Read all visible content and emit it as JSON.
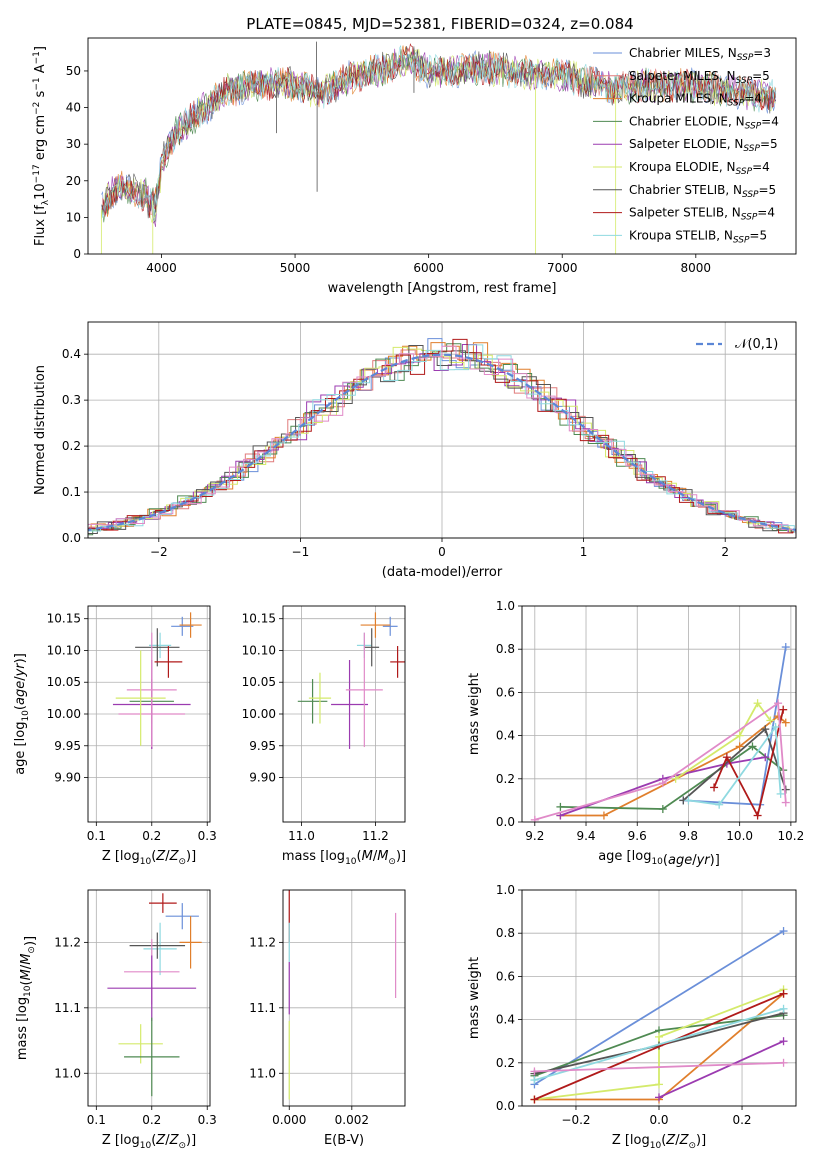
{
  "figure": {
    "title": "PLATE=0845, MJD=52381, FIBERID=0324, z=0.084"
  },
  "colors": {
    "Chabrier MILES": "#6a8fd9",
    "Salpeter MILES": "#e07b7b",
    "Kroupa MILES": "#e07f2c",
    "Chabrier ELODIE": "#4f8a52",
    "Salpeter ELODIE": "#9b3bb0",
    "Kroupa ELODIE": "#d4ea6b",
    "Chabrier STELIB": "#555555",
    "Salpeter STELIB": "#b01a1a",
    "Kroupa STELIB": "#8fd9e0",
    "Salpeter ELODIE pink": "#e08ac8",
    "gaussian": "#5b86d6"
  },
  "chart_data": [
    {
      "id": "spectrum",
      "type": "line",
      "xlabel": "wavelength [Angstrom, rest frame]",
      "ylabel": "Flux [f_λ 10^-17 erg cm^-2 s^-1 A^-1]",
      "ylabel_parts": {
        "a": "Flux [f",
        "b": "λ",
        "c": "10",
        "d": "−17",
        "e": " erg cm",
        "f": "−2",
        "g": " s",
        "h": "−1",
        "i": " A",
        "j": "−1",
        "k": "]"
      },
      "xlim": [
        3450,
        8750
      ],
      "ylim": [
        0,
        59
      ],
      "xticks": [
        4000,
        5000,
        6000,
        7000,
        8000
      ],
      "yticks": [
        0,
        10,
        20,
        30,
        40,
        50
      ],
      "grid": false,
      "legend_position": "top-right",
      "legend": [
        {
          "label": "Chabrier MILES, N",
          "sub": "SSP",
          "tail": "=3",
          "color": "#6a8fd9"
        },
        {
          "label": "Salpeter MILES, N",
          "sub": "SSP",
          "tail": "=5",
          "color": "#e07b7b"
        },
        {
          "label": "Kroupa MILES, N",
          "sub": "SSP",
          "tail": "=4",
          "color": "#e07f2c"
        },
        {
          "label": "Chabrier ELODIE, N",
          "sub": "SSP",
          "tail": "=4",
          "color": "#4f8a52"
        },
        {
          "label": "Salpeter ELODIE, N",
          "sub": "SSP",
          "tail": "=5",
          "color": "#9b3bb0"
        },
        {
          "label": "Kroupa ELODIE, N",
          "sub": "SSP",
          "tail": "=4",
          "color": "#d4ea6b"
        },
        {
          "label": "Chabrier STELIB, N",
          "sub": "SSP",
          "tail": "=5",
          "color": "#555555"
        },
        {
          "label": "Salpeter STELIB, N",
          "sub": "SSP",
          "tail": "=4",
          "color": "#b01a1a"
        },
        {
          "label": "Kroupa STELIB, N",
          "sub": "SSP",
          "tail": "=5",
          "color": "#8fd9e0"
        }
      ],
      "continuum": [
        [
          3550,
          12
        ],
        [
          3600,
          15
        ],
        [
          3700,
          19
        ],
        [
          3800,
          17
        ],
        [
          3900,
          16
        ],
        [
          3950,
          14
        ],
        [
          4000,
          25
        ],
        [
          4100,
          33
        ],
        [
          4300,
          39
        ],
        [
          4500,
          45
        ],
        [
          4700,
          46
        ],
        [
          4900,
          47
        ],
        [
          5100,
          45
        ],
        [
          5200,
          44
        ],
        [
          5400,
          48
        ],
        [
          5700,
          51
        ],
        [
          5850,
          53
        ],
        [
          6000,
          50
        ],
        [
          6200,
          50
        ],
        [
          6400,
          51
        ],
        [
          6600,
          50
        ],
        [
          6800,
          49
        ],
        [
          7000,
          49
        ],
        [
          7200,
          47
        ],
        [
          7400,
          45
        ],
        [
          7600,
          46
        ],
        [
          8000,
          46
        ],
        [
          8400,
          44
        ],
        [
          8600,
          43
        ]
      ],
      "spikes": [
        [
          5160,
          58
        ],
        [
          5165,
          17
        ],
        [
          4861,
          33
        ],
        [
          5890,
          44
        ],
        [
          6560,
          55
        ],
        [
          6800,
          0
        ],
        [
          7400,
          0
        ],
        [
          3550,
          0
        ],
        [
          3935,
          0
        ]
      ]
    },
    {
      "id": "residuals",
      "type": "histogram",
      "xlabel": "(data-model)/error",
      "ylabel": "Normed distribution",
      "xlim": [
        -2.5,
        2.5
      ],
      "ylim": [
        0,
        0.47
      ],
      "xticks": [
        -2,
        -1,
        0,
        1,
        2
      ],
      "yticks": [
        0.0,
        0.1,
        0.2,
        0.3,
        0.4
      ],
      "grid": true,
      "legend_position": "top-right",
      "gaussian_label": "𝒩(0,1)",
      "bin_width": 0.1
    },
    {
      "id": "z-age",
      "type": "scatter",
      "xlabel": "Z [log10(Z/Z⊙)]",
      "ylabel": "age [log10(age/yr)]",
      "xlim": [
        0.085,
        0.305
      ],
      "ylim": [
        9.83,
        10.17
      ],
      "xticks": [
        0.1,
        0.2,
        0.3
      ],
      "yticks": [
        9.9,
        9.95,
        10.0,
        10.05,
        10.1,
        10.15
      ],
      "grid": true,
      "errorbars": [
        {
          "x": 0.255,
          "y": 10.138,
          "xerr": 0.02,
          "yerr": 0.015,
          "color": "#6a8fd9"
        },
        {
          "x": 0.27,
          "y": 10.14,
          "xerr": 0.02,
          "yerr": 0.02,
          "color": "#e07f2c"
        },
        {
          "x": 0.215,
          "y": 10.108,
          "xerr": 0.02,
          "yerr": 0.02,
          "color": "#8fd9e0"
        },
        {
          "x": 0.21,
          "y": 10.105,
          "xerr": 0.04,
          "yerr": 0.03,
          "color": "#555555"
        },
        {
          "x": 0.23,
          "y": 10.082,
          "xerr": 0.025,
          "yerr": 0.025,
          "color": "#b01a1a"
        },
        {
          "x": 0.2,
          "y": 10.02,
          "xerr": 0.04,
          "yerr": 0.035,
          "color": "#4f8a52"
        },
        {
          "x": 0.2,
          "y": 10.0,
          "xerr": 0.06,
          "yerr": 0.055,
          "color": "#e08ac8"
        },
        {
          "x": 0.2,
          "y": 10.015,
          "xerr": 0.07,
          "yerr": 0.07,
          "color": "#9b3bb0"
        },
        {
          "x": 0.2,
          "y": 10.038,
          "xerr": 0.045,
          "yerr": 0.09,
          "color": "#e08ac8"
        },
        {
          "x": 0.18,
          "y": 10.025,
          "xerr": 0.045,
          "yerr": 0.075,
          "color": "#d4ea6b"
        }
      ]
    },
    {
      "id": "mass-age",
      "type": "scatter",
      "xlabel": "mass [log10(M/M⊙)]",
      "ylabel": "",
      "xlim": [
        10.95,
        11.28
      ],
      "ylim": [
        9.83,
        10.17
      ],
      "xticks": [
        11.0,
        11.2
      ],
      "yticks": [
        9.9,
        9.95,
        10.0,
        10.05,
        10.1,
        10.15
      ],
      "grid": true,
      "errorbars": [
        {
          "x": 11.24,
          "y": 10.138,
          "xerr": 0.02,
          "yerr": 0.015,
          "color": "#6a8fd9"
        },
        {
          "x": 11.2,
          "y": 10.14,
          "xerr": 0.04,
          "yerr": 0.02,
          "color": "#e07f2c"
        },
        {
          "x": 11.17,
          "y": 10.108,
          "xerr": 0.02,
          "yerr": 0.02,
          "color": "#8fd9e0"
        },
        {
          "x": 11.19,
          "y": 10.105,
          "xerr": 0.02,
          "yerr": 0.03,
          "color": "#555555"
        },
        {
          "x": 11.26,
          "y": 10.082,
          "xerr": 0.02,
          "yerr": 0.025,
          "color": "#b01a1a"
        },
        {
          "x": 11.03,
          "y": 10.02,
          "xerr": 0.04,
          "yerr": 0.035,
          "color": "#4f8a52"
        },
        {
          "x": 11.13,
          "y": 10.015,
          "xerr": 0.05,
          "yerr": 0.07,
          "color": "#9b3bb0"
        },
        {
          "x": 11.17,
          "y": 10.038,
          "xerr": 0.05,
          "yerr": 0.09,
          "color": "#e08ac8"
        },
        {
          "x": 11.05,
          "y": 10.025,
          "xerr": 0.03,
          "yerr": 0.04,
          "color": "#d4ea6b"
        }
      ]
    },
    {
      "id": "age-weight",
      "type": "line",
      "xlabel": "age [log10(age/yr)]",
      "ylabel": "mass weight",
      "xlim": [
        9.15,
        10.22
      ],
      "ylim": [
        0,
        1
      ],
      "xticks": [
        9.2,
        9.4,
        9.6,
        9.8,
        10.0,
        10.2
      ],
      "yticks": [
        0.0,
        0.2,
        0.4,
        0.6,
        0.8,
        1.0
      ],
      "grid": true,
      "series": [
        {
          "color": "#6a8fd9",
          "points": [
            [
              9.78,
              0.1
            ],
            [
              10.08,
              0.08
            ],
            [
              10.18,
              0.81
            ]
          ]
        },
        {
          "color": "#e07f2c",
          "points": [
            [
              9.3,
              0.03
            ],
            [
              9.47,
              0.03
            ],
            [
              10.0,
              0.35
            ],
            [
              10.15,
              0.49
            ],
            [
              10.18,
              0.46
            ]
          ]
        },
        {
          "color": "#4f8a52",
          "points": [
            [
              9.3,
              0.07
            ],
            [
              9.7,
              0.06
            ],
            [
              10.05,
              0.35
            ],
            [
              10.17,
              0.24
            ]
          ]
        },
        {
          "color": "#9b3bb0",
          "points": [
            [
              9.3,
              0.03
            ],
            [
              9.7,
              0.2
            ],
            [
              9.95,
              0.27
            ],
            [
              10.1,
              0.3
            ]
          ]
        },
        {
          "color": "#d4ea6b",
          "points": [
            [
              9.75,
              0.2
            ],
            [
              10.0,
              0.4
            ],
            [
              10.07,
              0.55
            ],
            [
              10.12,
              0.47
            ]
          ]
        },
        {
          "color": "#555555",
          "points": [
            [
              9.78,
              0.1
            ],
            [
              10.1,
              0.43
            ],
            [
              10.18,
              0.15
            ]
          ]
        },
        {
          "color": "#b01a1a",
          "points": [
            [
              9.9,
              0.16
            ],
            [
              9.95,
              0.3
            ],
            [
              10.07,
              0.03
            ],
            [
              10.17,
              0.52
            ]
          ]
        },
        {
          "color": "#8fd9e0",
          "points": [
            [
              9.8,
              0.1
            ],
            [
              9.92,
              0.08
            ],
            [
              10.14,
              0.44
            ],
            [
              10.16,
              0.13
            ]
          ]
        },
        {
          "color": "#e08ac8",
          "points": [
            [
              9.2,
              0.01
            ],
            [
              9.7,
              0.18
            ],
            [
              10.15,
              0.55
            ],
            [
              10.18,
              0.09
            ]
          ]
        }
      ]
    },
    {
      "id": "z-mass",
      "type": "scatter",
      "xlabel": "Z [log10(Z/Z⊙)]",
      "ylabel": "mass [log10(M/M⊙)]",
      "xlim": [
        0.085,
        0.305
      ],
      "ylim": [
        10.95,
        11.28
      ],
      "xticks": [
        0.1,
        0.2,
        0.3
      ],
      "yticks": [
        11.0,
        11.1,
        11.2
      ],
      "grid": true,
      "errorbars": [
        {
          "x": 0.255,
          "y": 11.24,
          "xerr": 0.03,
          "yerr": 0.02,
          "color": "#6a8fd9"
        },
        {
          "x": 0.22,
          "y": 11.26,
          "xerr": 0.025,
          "yerr": 0.015,
          "color": "#b01a1a"
        },
        {
          "x": 0.27,
          "y": 11.2,
          "xerr": 0.02,
          "yerr": 0.04,
          "color": "#e07f2c"
        },
        {
          "x": 0.215,
          "y": 11.19,
          "xerr": 0.03,
          "yerr": 0.04,
          "color": "#8fd9e0"
        },
        {
          "x": 0.21,
          "y": 11.195,
          "xerr": 0.05,
          "yerr": 0.02,
          "color": "#555555"
        },
        {
          "x": 0.2,
          "y": 11.155,
          "xerr": 0.05,
          "yerr": 0.05,
          "color": "#e08ac8"
        },
        {
          "x": 0.2,
          "y": 11.13,
          "xerr": 0.08,
          "yerr": 0.05,
          "color": "#9b3bb0"
        },
        {
          "x": 0.18,
          "y": 11.045,
          "xerr": 0.04,
          "yerr": 0.03,
          "color": "#d4ea6b"
        },
        {
          "x": 0.2,
          "y": 11.025,
          "xerr": 0.05,
          "yerr": 0.06,
          "color": "#4f8a52"
        }
      ]
    },
    {
      "id": "ebv-mass",
      "type": "scatter",
      "xlabel": "E(B-V)",
      "ylabel": "",
      "xlim": [
        -0.0002,
        0.0037
      ],
      "ylim": [
        10.95,
        11.28
      ],
      "xticks": [
        0.0,
        0.002
      ],
      "yticks": [
        11.0,
        11.1,
        11.2
      ],
      "grid": true,
      "errorbars": [
        {
          "x": 0.0,
          "y": 11.24,
          "xerr": 0,
          "yerr": 0.04,
          "color": "#b01a1a"
        },
        {
          "x": 0.0,
          "y": 11.2,
          "xerr": 0,
          "yerr": 0.03,
          "color": "#8fd9e0"
        },
        {
          "x": 0.0,
          "y": 11.13,
          "xerr": 0,
          "yerr": 0.04,
          "color": "#9b3bb0"
        },
        {
          "x": 0.0,
          "y": 11.02,
          "xerr": 0,
          "yerr": 0.06,
          "color": "#d4ea6b"
        },
        {
          "x": 0.0034,
          "y": 11.18,
          "xerr": 0,
          "yerr": 0.065,
          "color": "#e08ac8"
        }
      ]
    },
    {
      "id": "z-weight",
      "type": "line",
      "xlabel": "Z [log10(Z/Z⊙)]",
      "ylabel": "mass weight",
      "xlim": [
        -0.33,
        0.33
      ],
      "ylim": [
        0,
        1
      ],
      "xticks": [
        -0.2,
        0.0,
        0.2
      ],
      "yticks": [
        0.0,
        0.2,
        0.4,
        0.6,
        0.8,
        1.0
      ],
      "grid": true,
      "series": [
        {
          "color": "#6a8fd9",
          "points": [
            [
              -0.3,
              0.1
            ],
            [
              0.3,
              0.81
            ]
          ]
        },
        {
          "color": "#e07f2c",
          "points": [
            [
              -0.3,
              0.03
            ],
            [
              0.0,
              0.03
            ],
            [
              0.3,
              0.52
            ]
          ]
        },
        {
          "color": "#4f8a52",
          "points": [
            [
              -0.3,
              0.14
            ],
            [
              0.0,
              0.35
            ],
            [
              0.3,
              0.42
            ]
          ]
        },
        {
          "color": "#9b3bb0",
          "points": [
            [
              0.0,
              0.04
            ],
            [
              0.3,
              0.3
            ]
          ]
        },
        {
          "color": "#d4ea6b",
          "points": [
            [
              -0.3,
              0.03
            ],
            [
              0.0,
              0.1
            ],
            [
              0.0,
              0.32
            ],
            [
              0.3,
              0.54
            ]
          ]
        },
        {
          "color": "#555555",
          "points": [
            [
              -0.3,
              0.15
            ],
            [
              0.0,
              0.28
            ],
            [
              0.3,
              0.43
            ]
          ]
        },
        {
          "color": "#b01a1a",
          "points": [
            [
              -0.3,
              0.03
            ],
            [
              0.3,
              0.52
            ]
          ]
        },
        {
          "color": "#8fd9e0",
          "points": [
            [
              -0.3,
              0.12
            ],
            [
              0.3,
              0.45
            ]
          ]
        },
        {
          "color": "#e08ac8",
          "points": [
            [
              -0.3,
              0.16
            ],
            [
              0.3,
              0.2
            ]
          ]
        }
      ]
    }
  ]
}
